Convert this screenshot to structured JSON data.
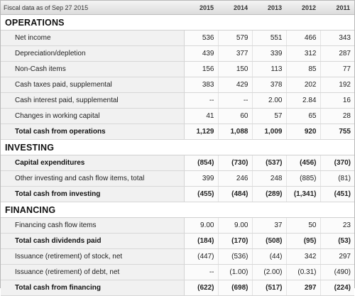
{
  "header": {
    "caption": "Fiscal data as of Sep 27 2015",
    "years": [
      "2015",
      "2014",
      "2013",
      "2012",
      "2011"
    ]
  },
  "sections": [
    {
      "title": "OPERATIONS",
      "rows": [
        {
          "label": "Net income",
          "values": [
            "536",
            "579",
            "551",
            "466",
            "343"
          ],
          "total": false
        },
        {
          "label": "Depreciation/depletion",
          "values": [
            "439",
            "377",
            "339",
            "312",
            "287"
          ],
          "total": false
        },
        {
          "label": "Non-Cash items",
          "values": [
            "156",
            "150",
            "113",
            "85",
            "77"
          ],
          "total": false
        },
        {
          "label": "Cash taxes paid, supplemental",
          "values": [
            "383",
            "429",
            "378",
            "202",
            "192"
          ],
          "total": false
        },
        {
          "label": "Cash interest paid, supplemental",
          "values": [
            "--",
            "--",
            "2.00",
            "2.84",
            "16"
          ],
          "total": false
        },
        {
          "label": "Changes in working capital",
          "values": [
            "41",
            "60",
            "57",
            "65",
            "28"
          ],
          "total": false
        },
        {
          "label": "Total cash from operations",
          "values": [
            "1,129",
            "1,088",
            "1,009",
            "920",
            "755"
          ],
          "total": true
        }
      ]
    },
    {
      "title": "INVESTING",
      "rows": [
        {
          "label": "Capital expenditures",
          "values": [
            "(854)",
            "(730)",
            "(537)",
            "(456)",
            "(370)"
          ],
          "total": true
        },
        {
          "label": "Other investing and cash flow items, total",
          "values": [
            "399",
            "246",
            "248",
            "(885)",
            "(81)"
          ],
          "total": false
        },
        {
          "label": "Total cash from investing",
          "values": [
            "(455)",
            "(484)",
            "(289)",
            "(1,341)",
            "(451)"
          ],
          "total": true
        }
      ]
    },
    {
      "title": "FINANCING",
      "rows": [
        {
          "label": "Financing cash flow items",
          "values": [
            "9.00",
            "9.00",
            "37",
            "50",
            "23"
          ],
          "total": false
        },
        {
          "label": "Total cash dividends paid",
          "values": [
            "(184)",
            "(170)",
            "(508)",
            "(95)",
            "(53)"
          ],
          "total": true
        },
        {
          "label": "Issuance (retirement) of stock, net",
          "values": [
            "(447)",
            "(536)",
            "(44)",
            "342",
            "297"
          ],
          "total": false
        },
        {
          "label": "Issuance (retirement) of debt, net",
          "values": [
            "--",
            "(1.00)",
            "(2.00)",
            "(0.31)",
            "(490)"
          ],
          "total": false
        },
        {
          "label": "Total cash from financing",
          "values": [
            "(622)",
            "(698)",
            "(517)",
            "297",
            "(224)"
          ],
          "total": true
        }
      ]
    }
  ]
}
